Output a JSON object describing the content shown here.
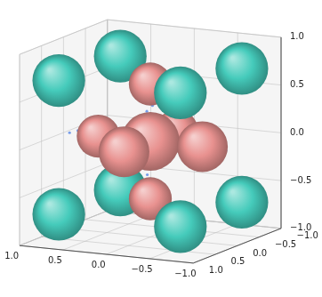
{
  "chart_data": {
    "type": "scatter3d",
    "xlim": [
      -1,
      1
    ],
    "ylim": [
      -1,
      1
    ],
    "zlim": [
      -1,
      1
    ],
    "xticks": [
      {
        "value": -1,
        "label": "−1.0"
      },
      {
        "value": -0.5,
        "label": "−0.5"
      },
      {
        "value": 0,
        "label": "0.0"
      },
      {
        "value": 0.5,
        "label": "0.5"
      },
      {
        "value": 1,
        "label": "1.0"
      }
    ],
    "yticks": [
      {
        "value": -1,
        "label": "−1.0"
      },
      {
        "value": -0.5,
        "label": "−0.5"
      },
      {
        "value": 0,
        "label": "0.0"
      },
      {
        "value": 0.5,
        "label": "0.5"
      },
      {
        "value": 1,
        "label": "1.0"
      }
    ],
    "zticks": [
      {
        "value": -1,
        "label": "−1.0"
      },
      {
        "value": -0.5,
        "label": "−0.5"
      },
      {
        "value": 0,
        "label": "0.0"
      },
      {
        "value": 0.5,
        "label": "0.5"
      },
      {
        "value": 1,
        "label": "1.0"
      }
    ],
    "grid": true,
    "series": [
      {
        "type": "sphere",
        "x": [
          0.7,
          0.7,
          0,
          -0.7,
          -0.7,
          0.6,
          0,
          0,
          0,
          0.7,
          0.7,
          -0.6,
          0,
          -0.7,
          -0.7
        ],
        "y": [
          -0.7,
          -0.7,
          -0.6,
          -0.7,
          -0.7,
          0,
          0,
          0,
          0,
          0.7,
          0.7,
          0,
          0.6,
          0.7,
          0.7
        ],
        "z": [
          0.7,
          -0.7,
          0,
          0.7,
          -0.7,
          0,
          -0.6,
          0,
          0.6,
          0.7,
          -0.7,
          0,
          0,
          0.7,
          -0.7
        ],
        "radius": [
          0.27,
          0.27,
          0.22,
          0.27,
          0.27,
          0.22,
          0.22,
          0.3,
          0.22,
          0.27,
          0.27,
          0.26,
          0.26,
          0.27,
          0.27
        ],
        "colors": [
          "#45cbbb",
          "#45cbbb",
          "#e8918f",
          "#45cbbb",
          "#45cbbb",
          "#e8918f",
          "#e8918f",
          "#e8918f",
          "#e8918f",
          "#45cbbb",
          "#45cbbb",
          "#e8918f",
          "#e8918f",
          "#45cbbb",
          "#45cbbb"
        ]
      },
      {
        "type": "scatter",
        "marker": "circle",
        "color": "#4d7fe6",
        "x": [
          0.02,
          -0.01,
          0.03,
          0.0,
          -0.02,
          0.01,
          0.04,
          -0.03,
          0.02,
          0.0,
          -0.04,
          0.03,
          -0.06,
          0.02,
          -0.01,
          0.03,
          0.0,
          -0.03,
          0.02,
          0.05,
          -0.02,
          0.01,
          0.92,
          0.85,
          0.78,
          0.71,
          0.65,
          0.58,
          0.5,
          0.43,
          0.36,
          -0.36,
          -0.42,
          -0.48,
          -0.55,
          -0.6,
          -0.66,
          -0.72,
          -0.8,
          -0.88,
          0.02,
          -0.03,
          0.01,
          0.04,
          -0.02,
          0.03,
          0.0,
          -0.04,
          0.02,
          -0.01,
          0.03,
          -0.02,
          0.01,
          0.04,
          -0.03,
          0.18,
          -0.15,
          0.08,
          -0.1,
          0.12,
          -0.2,
          0.05,
          0.22
        ],
        "y": [
          0.01,
          0.03,
          -0.02,
          0.02,
          0.0,
          -0.03,
          0.02,
          0.01,
          0.04,
          -0.01,
          0.02,
          0.0,
          -0.05,
          0.03,
          -0.02,
          0.01,
          0.04,
          -0.01,
          0.02,
          -0.03,
          0.01,
          -0.02,
          0.02,
          -0.03,
          0.01,
          0.04,
          -0.02,
          0.03,
          0.0,
          -0.04,
          0.02,
          0.01,
          -0.03,
          0.02,
          0.05,
          -0.02,
          0.03,
          -0.04,
          0.01,
          0.02,
          0.35,
          0.42,
          0.5,
          0.57,
          0.64,
          0.7,
          0.78,
          0.86,
          -0.35,
          -0.42,
          -0.5,
          -0.58,
          -0.66,
          -0.74,
          -0.82,
          0.05,
          0.1,
          -0.18,
          -0.08,
          0.14,
          0.02,
          0.2,
          -0.1
        ],
        "z": [
          0.78,
          0.72,
          0.66,
          0.6,
          0.54,
          0.49,
          0.44,
          0.38,
          0.32,
          0.25,
          0.19,
          0.12,
          -0.15,
          -0.22,
          -0.28,
          -0.35,
          -0.41,
          -0.47,
          -0.53,
          -0.58,
          -0.64,
          -0.7,
          0.01,
          0.03,
          -0.02,
          0.02,
          -0.04,
          0.01,
          0.03,
          -0.01,
          0.02,
          -0.02,
          0.03,
          0.0,
          -0.03,
          0.04,
          0.01,
          -0.02,
          0.03,
          -0.01,
          0.01,
          -0.02,
          0.03,
          0.0,
          -0.03,
          0.02,
          -0.01,
          0.02,
          0.02,
          -0.01,
          0.03,
          0.0,
          -0.02,
          0.01,
          0.02,
          0.04,
          -0.06,
          0.1,
          0.16,
          -0.1,
          0.08,
          0.0,
          -0.05
        ]
      }
    ]
  }
}
